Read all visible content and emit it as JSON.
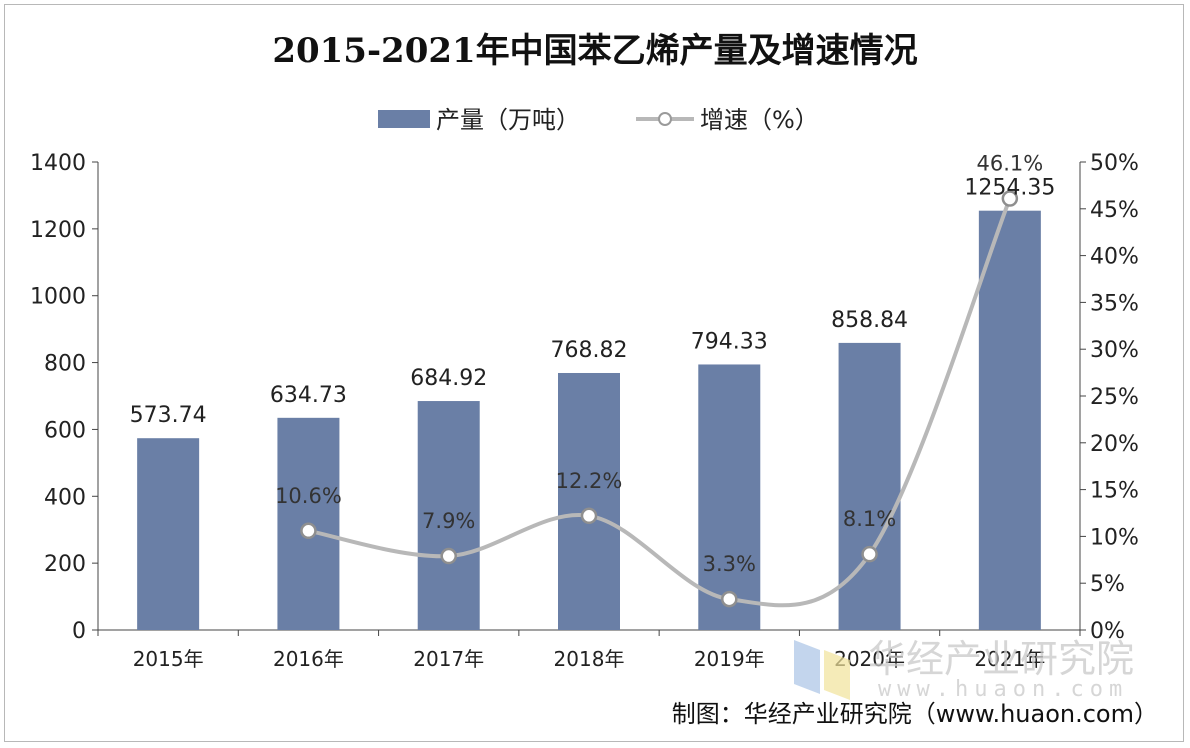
{
  "chart_data": {
    "type": "bar+line",
    "title": "2015-2021年中国苯乙烯产量及增速情况",
    "categories": [
      "2015年",
      "2016年",
      "2017年",
      "2018年",
      "2019年",
      "2020年",
      "2021年"
    ],
    "series": [
      {
        "name": "产量（万吨）",
        "type": "bar",
        "axis": "left",
        "values": [
          573.74,
          634.73,
          684.92,
          768.82,
          794.33,
          858.84,
          1254.35
        ],
        "labels": [
          "573.74",
          "634.73",
          "684.92",
          "768.82",
          "794.33",
          "858.84",
          "1254.35"
        ],
        "color": "#6a7fa6"
      },
      {
        "name": "增速（%）",
        "type": "line",
        "axis": "right",
        "values": [
          null,
          10.6,
          7.9,
          12.2,
          3.3,
          8.1,
          46.1
        ],
        "labels": [
          "",
          "10.6%",
          "7.9%",
          "12.2%",
          "3.3%",
          "8.1%",
          "46.1%"
        ],
        "color": "#b8b8b8"
      }
    ],
    "y_left": {
      "min": 0,
      "max": 1400,
      "ticks": [
        "0",
        "200",
        "400",
        "600",
        "800",
        "1000",
        "1200",
        "1400"
      ]
    },
    "y_right": {
      "min": 0,
      "max": 50,
      "ticks": [
        "0%",
        "5%",
        "10%",
        "15%",
        "20%",
        "25%",
        "30%",
        "35%",
        "40%",
        "45%",
        "50%"
      ]
    },
    "legend": [
      "产量（万吨）",
      "增速（%）"
    ],
    "legend_position": "top-center",
    "grid": false
  },
  "source": "制图：华经产业研究院（www.huaon.com）",
  "watermark": {
    "name": "华经产业研究院",
    "url": "www.huaon.com"
  }
}
